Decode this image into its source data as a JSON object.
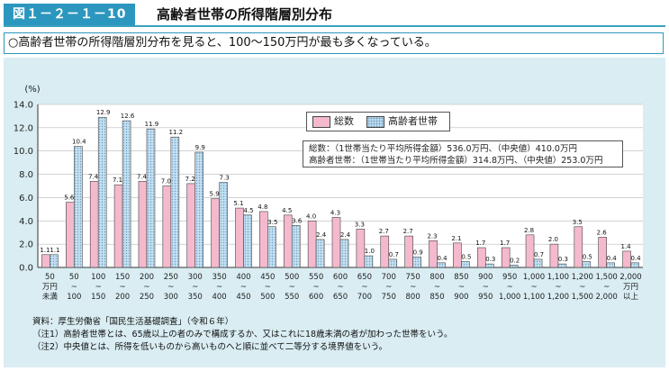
{
  "header": {
    "figure_number": "図１－２－１－10",
    "title": "高齢者世帯の所得階層別分布"
  },
  "summary_text": "○高齢者世帯の所得階層別分布を見ると、100～150万円が最も多くなっている。",
  "legend": {
    "total": "総数",
    "elderly": "高齢者世帯"
  },
  "info": {
    "line1": "総数：（1世帯当たり平均所得金額）536.0万円、（中央値）410.0万円",
    "line2": "高齢者世帯：（1世帯当たり平均所得金額）314.8万円、（中央値）253.0万円"
  },
  "notes": {
    "source": "資料：厚生労働省「国民生活基礎調査」（令和６年）",
    "note1": "（注1）高齢者世帯とは、65歳以上の者のみで構成するか、又はこれに18歳未満の者が加わった世帯をいう。",
    "note2": "（注2）中央値とは、所得を低いものから高いものへと順に並べて二等分する境界値をいう。"
  },
  "colors": {
    "total": "#f4b9cd",
    "elderly": "#c3dff0",
    "accent": "#2c97be"
  },
  "chart_data": {
    "type": "bar",
    "ylabel": "(%)",
    "ylim": [
      0,
      14
    ],
    "yticks": [
      "0.0",
      "2.0",
      "4.0",
      "6.0",
      "8.0",
      "10.0",
      "12.0",
      "14.0"
    ],
    "grid": true,
    "legend_position": "top-right",
    "categories": [
      [
        "50",
        "万円",
        "未満"
      ],
      [
        "50",
        "~",
        "100"
      ],
      [
        "100",
        "~",
        "150"
      ],
      [
        "150",
        "~",
        "200"
      ],
      [
        "200",
        "~",
        "250"
      ],
      [
        "250",
        "~",
        "300"
      ],
      [
        "300",
        "~",
        "350"
      ],
      [
        "350",
        "~",
        "400"
      ],
      [
        "400",
        "~",
        "450"
      ],
      [
        "450",
        "~",
        "500"
      ],
      [
        "500",
        "~",
        "550"
      ],
      [
        "550",
        "~",
        "600"
      ],
      [
        "600",
        "~",
        "650"
      ],
      [
        "650",
        "~",
        "700"
      ],
      [
        "700",
        "~",
        "750"
      ],
      [
        "750",
        "~",
        "800"
      ],
      [
        "800",
        "~",
        "850"
      ],
      [
        "850",
        "~",
        "900"
      ],
      [
        "900",
        "~",
        "950"
      ],
      [
        "950",
        "~",
        "1,000"
      ],
      [
        "1,000",
        "~",
        "1,100"
      ],
      [
        "1,100",
        "~",
        "1,200"
      ],
      [
        "1,200",
        "~",
        "1,500"
      ],
      [
        "1,500",
        "~",
        "2,000"
      ],
      [
        "2,000",
        "万円",
        "以上"
      ]
    ],
    "series": [
      {
        "name": "総数",
        "values": [
          1.1,
          5.6,
          7.4,
          7.1,
          7.4,
          7.0,
          7.2,
          5.9,
          5.1,
          4.8,
          4.5,
          4.0,
          4.3,
          3.3,
          2.7,
          2.7,
          2.3,
          2.1,
          1.7,
          1.7,
          2.8,
          2.0,
          3.5,
          2.6,
          1.4
        ],
        "labels": [
          "1.1",
          "5.6",
          "7.4",
          "7.1",
          "7.4",
          "7.0",
          "7.2",
          "5.9",
          "5.1",
          "4.8",
          "4.5",
          "4.0",
          "4.3",
          "3.3",
          "2.7",
          "2.7",
          "2.3",
          "2.1",
          "1.7",
          "1.7",
          "2.8",
          "2.0",
          "3.5",
          "2.6",
          "1.4"
        ]
      },
      {
        "name": "高齢者世帯",
        "values": [
          1.1,
          10.4,
          12.9,
          12.6,
          11.9,
          11.2,
          9.9,
          7.3,
          4.5,
          3.5,
          3.6,
          2.4,
          2.4,
          1.0,
          0.7,
          0.9,
          0.4,
          0.5,
          0.3,
          0.2,
          0.7,
          0.3,
          0.5,
          0.4,
          0.4
        ],
        "labels": [
          "1.1",
          "10.4",
          "12.9",
          "12.6",
          "11.9",
          "11.2",
          "9.9",
          "7.3",
          "4.5",
          "3.5",
          "3.6",
          "2.4",
          "2.4",
          "1.0",
          "0.7",
          "0.9",
          "0.4",
          "0.5",
          "0.3",
          "0.2",
          "0.7",
          "0.3",
          "0.5",
          "0.4",
          "0.4"
        ]
      }
    ]
  }
}
